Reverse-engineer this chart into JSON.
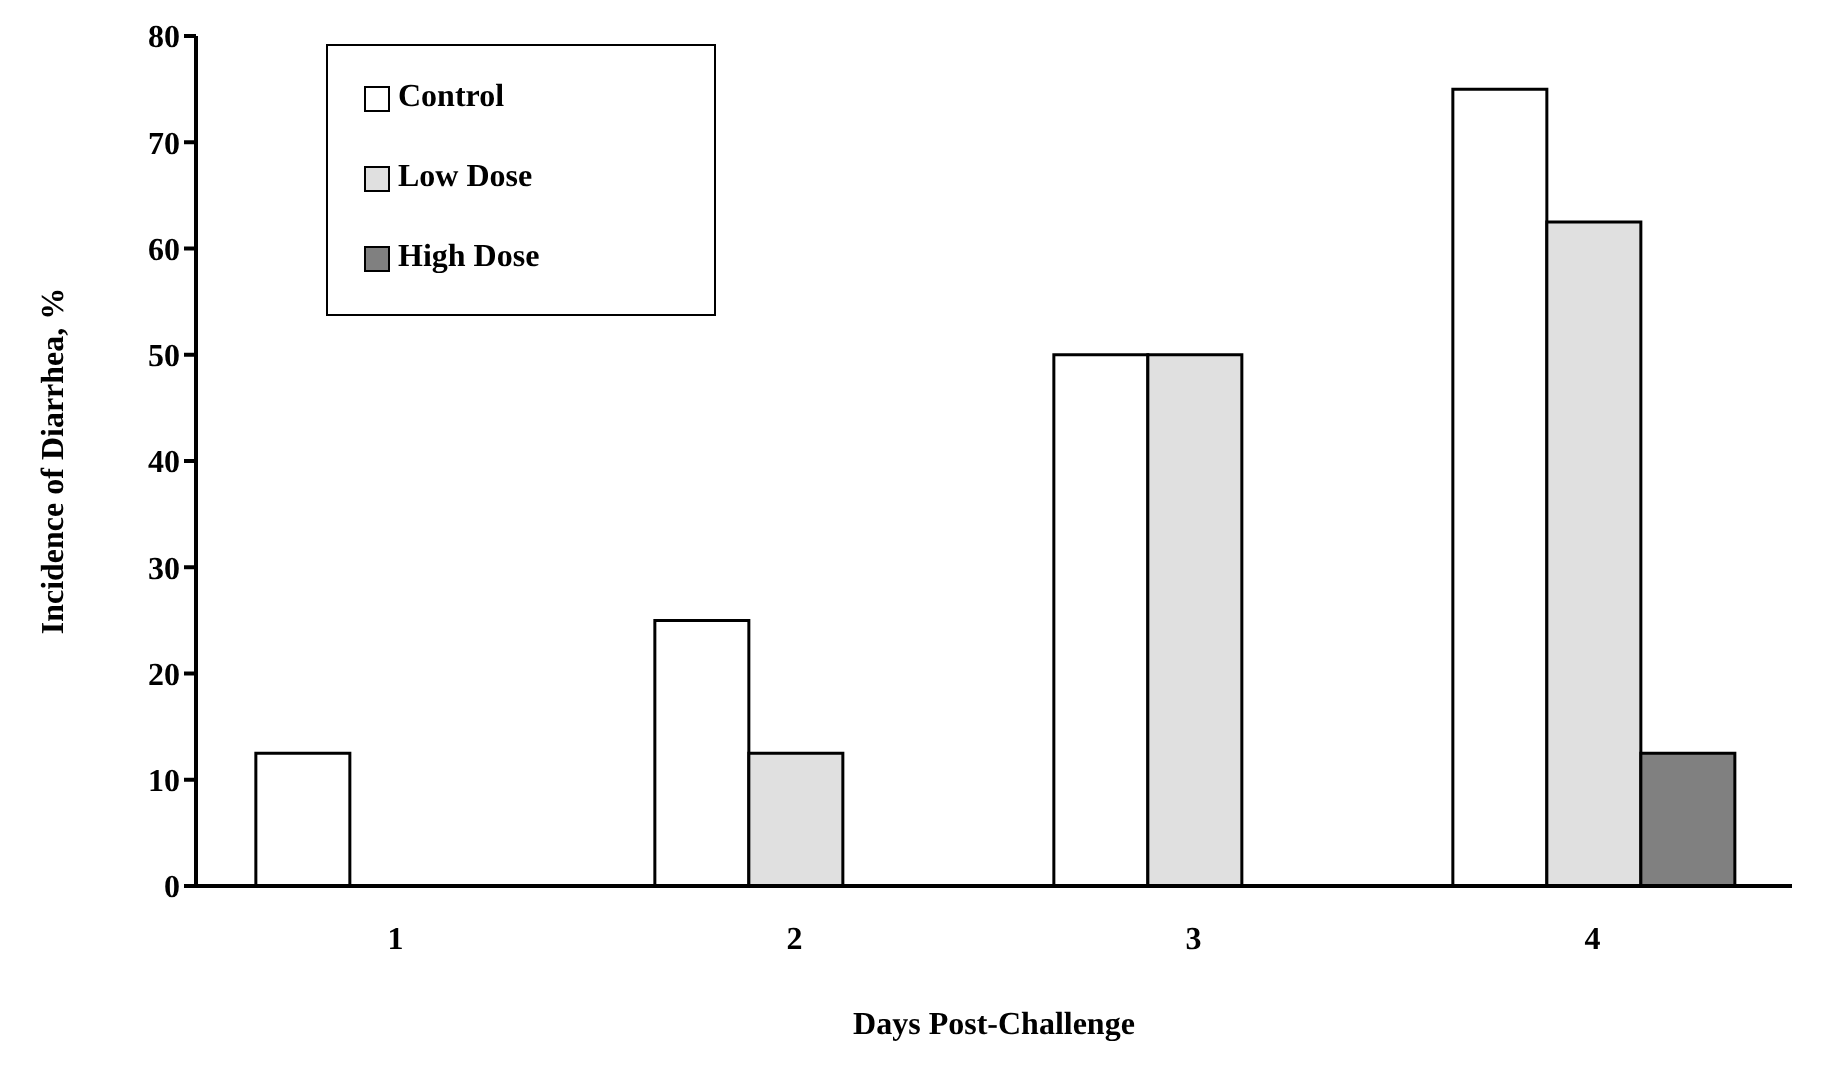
{
  "chart_data": {
    "type": "bar",
    "xlabel": "Days Post-Challenge",
    "ylabel": "Incidence of Diarrhea, %",
    "categories": [
      "1",
      "2",
      "3",
      "4"
    ],
    "series": [
      {
        "name": "Control",
        "color": "#ffffff",
        "values": [
          12.5,
          25,
          50,
          75
        ]
      },
      {
        "name": "Low Dose",
        "color": "#e0e0e0",
        "values": [
          0,
          12.5,
          50,
          62.5
        ]
      },
      {
        "name": "High Dose",
        "color": "#808080",
        "values": [
          0,
          0,
          0,
          12.5
        ]
      }
    ],
    "ylim": [
      0,
      80
    ],
    "yticks": [
      0,
      10,
      20,
      30,
      40,
      50,
      60,
      70,
      80
    ],
    "grid": false,
    "legend": "top left"
  }
}
